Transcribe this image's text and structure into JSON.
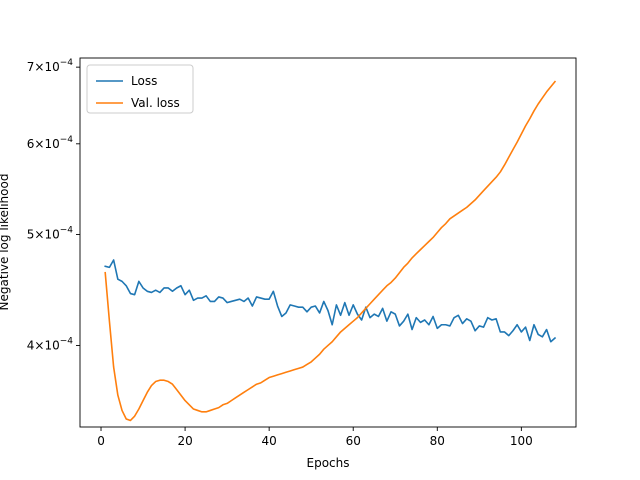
{
  "chart_data": {
    "type": "line",
    "title": "",
    "xlabel": "Epochs",
    "ylabel": "Negative log likelihood",
    "xlim": [
      -5,
      113
    ],
    "ylim": [
      0.0003395,
      0.000713
    ],
    "yscale": "log",
    "grid": false,
    "legend_position": "upper left",
    "x_ticks": [
      0,
      20,
      40,
      60,
      80,
      100
    ],
    "x_tick_labels": [
      "0",
      "20",
      "40",
      "60",
      "80",
      "100"
    ],
    "y_ticks": [
      0.0004,
      0.0005,
      0.0006,
      0.0007
    ],
    "y_tick_labels": [
      {
        "mantissa": "4",
        "base": "10",
        "exp": "−4"
      },
      {
        "mantissa": "5",
        "base": "10",
        "exp": "−4"
      },
      {
        "mantissa": "6",
        "base": "10",
        "exp": "−4"
      },
      {
        "mantissa": "7",
        "base": "10",
        "exp": "−4"
      }
    ],
    "series": [
      {
        "name": "Loss",
        "color": "#1f77b4",
        "x": [
          1,
          2,
          3,
          4,
          5,
          6,
          7,
          8,
          9,
          10,
          11,
          12,
          13,
          14,
          15,
          16,
          17,
          18,
          19,
          20,
          21,
          22,
          23,
          24,
          25,
          26,
          27,
          28,
          29,
          30,
          31,
          32,
          33,
          34,
          35,
          36,
          37,
          38,
          39,
          40,
          41,
          42,
          43,
          44,
          45,
          46,
          47,
          48,
          49,
          50,
          51,
          52,
          53,
          54,
          55,
          56,
          57,
          58,
          59,
          60,
          61,
          62,
          63,
          64,
          65,
          66,
          67,
          68,
          69,
          70,
          71,
          72,
          73,
          74,
          75,
          76,
          77,
          78,
          79,
          80,
          81,
          82,
          83,
          84,
          85,
          86,
          87,
          88,
          89,
          90,
          91,
          92,
          93,
          94,
          95,
          96,
          97,
          98,
          99,
          100,
          101,
          102,
          103,
          104,
          105,
          106,
          107,
          108
        ],
        "values": [
          0.000469,
          0.000468,
          0.000475,
          0.000457,
          0.000455,
          0.000451,
          0.000444,
          0.000443,
          0.000455,
          0.000449,
          0.000446,
          0.000445,
          0.000447,
          0.000445,
          0.000449,
          0.000449,
          0.000446,
          0.000449,
          0.000451,
          0.000443,
          0.000447,
          0.000438,
          0.00044,
          0.00044,
          0.000442,
          0.000437,
          0.000437,
          0.000441,
          0.00044,
          0.000436,
          0.000437,
          0.000438,
          0.000439,
          0.000437,
          0.00044,
          0.000433,
          0.000441,
          0.00044,
          0.000439,
          0.000439,
          0.000446,
          0.000433,
          0.000424,
          0.000427,
          0.000434,
          0.000433,
          0.000432,
          0.000432,
          0.000428,
          0.000432,
          0.000433,
          0.000427,
          0.000437,
          0.000429,
          0.000417,
          0.000434,
          0.000425,
          0.000436,
          0.000425,
          0.000434,
          0.000426,
          0.000421,
          0.000432,
          0.000423,
          0.000426,
          0.000424,
          0.000431,
          0.00042,
          0.000428,
          0.000426,
          0.000416,
          0.00042,
          0.000426,
          0.000413,
          0.000423,
          0.000419,
          0.000421,
          0.000417,
          0.000424,
          0.000414,
          0.000417,
          0.000417,
          0.000416,
          0.000423,
          0.000425,
          0.000418,
          0.000422,
          0.00042,
          0.000412,
          0.000416,
          0.000415,
          0.000423,
          0.000421,
          0.000422,
          0.000411,
          0.000411,
          0.000408,
          0.000412,
          0.000417,
          0.000411,
          0.000415,
          0.000404,
          0.000417,
          0.000409,
          0.000407,
          0.000413,
          0.000403,
          0.000406
        ]
      },
      {
        "name": "Val. loss",
        "color": "#ff7f0e",
        "x": [
          1,
          2,
          3,
          4,
          5,
          6,
          7,
          8,
          9,
          10,
          11,
          12,
          13,
          14,
          15,
          16,
          17,
          18,
          19,
          20,
          21,
          22,
          23,
          24,
          25,
          26,
          27,
          28,
          29,
          30,
          31,
          32,
          33,
          34,
          35,
          36,
          37,
          38,
          39,
          40,
          41,
          42,
          43,
          44,
          45,
          46,
          47,
          48,
          49,
          50,
          51,
          52,
          53,
          54,
          55,
          56,
          57,
          58,
          59,
          60,
          61,
          62,
          63,
          64,
          65,
          66,
          67,
          68,
          69,
          70,
          71,
          72,
          73,
          74,
          75,
          76,
          77,
          78,
          79,
          80,
          81,
          82,
          83,
          84,
          85,
          86,
          87,
          88,
          89,
          90,
          91,
          92,
          93,
          94,
          95,
          96,
          97,
          98,
          99,
          100,
          101,
          102,
          103,
          104,
          105,
          106,
          107,
          108
        ],
        "values": [
          0.000463,
          0.00042,
          0.000383,
          0.000362,
          0.000351,
          0.000345,
          0.000344,
          0.000347,
          0.000352,
          0.000358,
          0.000364,
          0.000369,
          0.000372,
          0.000373,
          0.000373,
          0.000372,
          0.00037,
          0.000366,
          0.000362,
          0.000358,
          0.000355,
          0.000352,
          0.000351,
          0.00035,
          0.00035,
          0.000351,
          0.000352,
          0.000353,
          0.000355,
          0.000356,
          0.000358,
          0.00036,
          0.000362,
          0.000364,
          0.000366,
          0.000368,
          0.00037,
          0.000371,
          0.000373,
          0.000375,
          0.000376,
          0.000377,
          0.000378,
          0.000379,
          0.00038,
          0.000381,
          0.000382,
          0.000383,
          0.000385,
          0.000387,
          0.00039,
          0.000393,
          0.000397,
          0.0004,
          0.000403,
          0.000407,
          0.000411,
          0.000414,
          0.000417,
          0.00042,
          0.000423,
          0.000427,
          0.000431,
          0.000435,
          0.000439,
          0.000443,
          0.000447,
          0.000451,
          0.000454,
          0.000458,
          0.000463,
          0.000468,
          0.000472,
          0.000477,
          0.000481,
          0.000485,
          0.000489,
          0.000493,
          0.000497,
          0.000502,
          0.000507,
          0.000511,
          0.000516,
          0.000519,
          0.000522,
          0.000525,
          0.000528,
          0.000532,
          0.000536,
          0.000541,
          0.000546,
          0.000551,
          0.000556,
          0.000561,
          0.000567,
          0.000575,
          0.000584,
          0.000593,
          0.000602,
          0.000612,
          0.000622,
          0.000631,
          0.000641,
          0.00065,
          0.000658,
          0.000666,
          0.000673,
          0.00068
        ]
      }
    ]
  }
}
